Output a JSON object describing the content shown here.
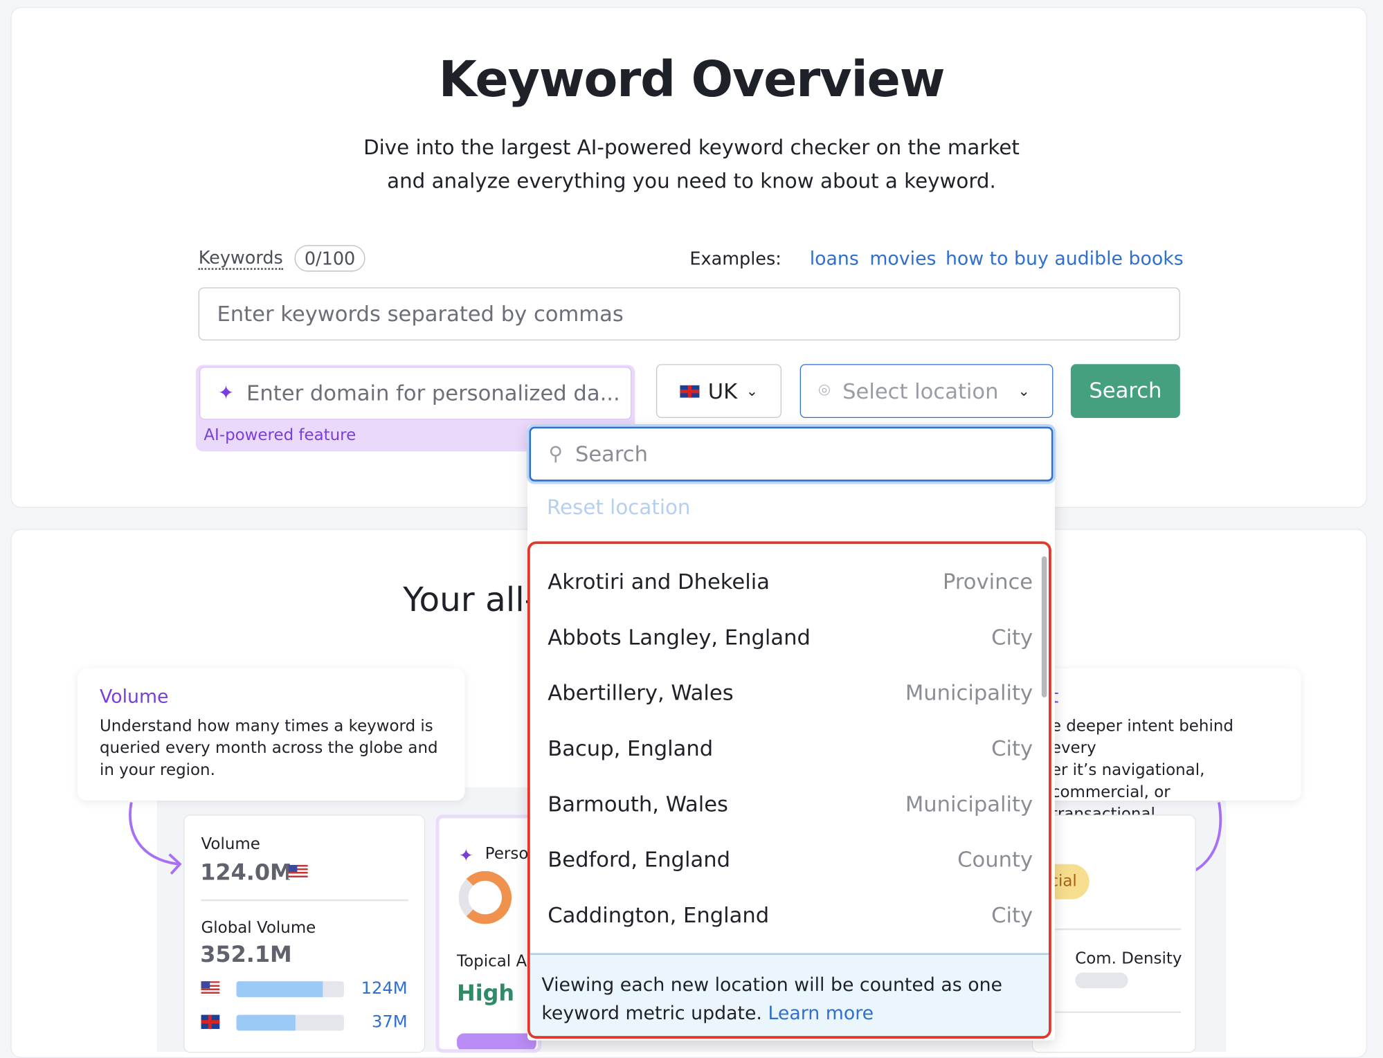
{
  "header": {
    "title": "Keyword Overview",
    "subtitle_line1": "Dive into the largest AI-powered keyword checker on the market",
    "subtitle_line2": "and analyze everything you need to know about a keyword."
  },
  "keywords": {
    "label": "Keywords",
    "counter": "0/100",
    "examples_label": "Examples:",
    "examples": [
      "loans",
      "movies",
      "how to buy audible books"
    ],
    "input_placeholder": "Enter keywords separated by commas"
  },
  "domain": {
    "placeholder": "Enter domain for personalized da...",
    "badge": "AI-powered feature"
  },
  "country": {
    "value": "UK",
    "flag": "uk-flag"
  },
  "location": {
    "placeholder": "Select location"
  },
  "search_button": "Search",
  "dropdown": {
    "search_placeholder": "Search",
    "reset": "Reset location",
    "items": [
      {
        "name": "Akrotiri and Dhekelia",
        "type": "Province"
      },
      {
        "name": "Abbots Langley, England",
        "type": "City"
      },
      {
        "name": "Abertillery, Wales",
        "type": "Municipality"
      },
      {
        "name": "Bacup, England",
        "type": "City"
      },
      {
        "name": "Barmouth, Wales",
        "type": "Municipality"
      },
      {
        "name": "Bedford, England",
        "type": "County"
      },
      {
        "name": "Caddington, England",
        "type": "City"
      }
    ],
    "footer_text1": "Viewing each new location will be counted as one",
    "footer_text2": "keyword metric update.",
    "footer_link": "Learn more"
  },
  "section2": {
    "heading": "Your all-",
    "volume_callout": {
      "title": "Volume",
      "text": "Understand how many times a keyword is queried every month across the globe and in your region."
    },
    "intent_callout": {
      "title": "t",
      "line1": "e deeper intent behind every",
      "line2": "er it’s navigational,",
      "line3": "commercial, or transactional."
    },
    "volume_card": {
      "label": "Volume",
      "value": "124.0M",
      "global_label": "Global Volume",
      "global_value": "352.1M",
      "countries": [
        {
          "flag": "us-flag",
          "value": "124M",
          "fill": 0.8
        },
        {
          "flag": "uk-flag",
          "value": "37M",
          "fill": 0.55
        }
      ]
    },
    "personal_card": {
      "label": "Perso",
      "topical_label": "Topical A",
      "topical_value": "High"
    },
    "intent_card": {
      "badge": "cial",
      "density_label": "Com. Density"
    }
  },
  "colors": {
    "accent_purple": "#7a3fd8",
    "link_blue": "#2f6fd0",
    "search_green": "#45a07f",
    "highlight_red": "#e0392b"
  }
}
